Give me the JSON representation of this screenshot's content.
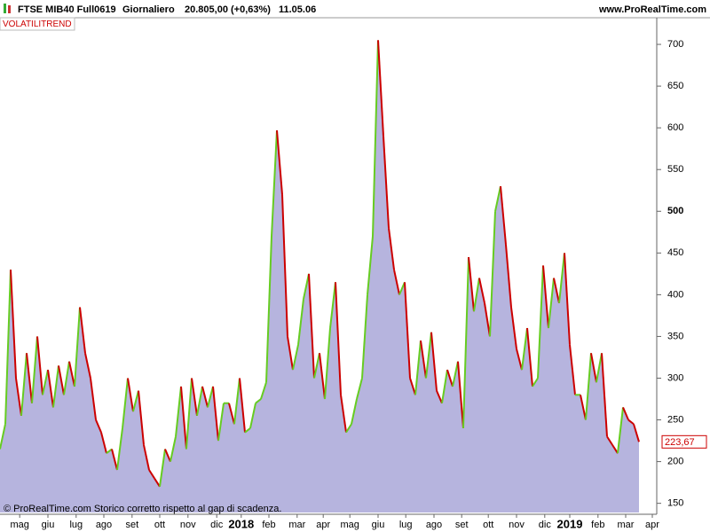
{
  "header": {
    "instrument": "FTSE MIB40 Full0619",
    "period": "Giornaliero",
    "quote": "20.805,00 (+0,63%)",
    "time": "11.05.06",
    "site": "www.ProRealTime.com"
  },
  "indicator_label": "VOLATILITREND",
  "footer": "© ProRealTime.com  Storico corretto rispetto al gap di scadenza.",
  "chart_data": {
    "type": "area",
    "values": [
      215,
      245,
      430,
      300,
      255,
      330,
      270,
      350,
      280,
      310,
      265,
      315,
      280,
      320,
      290,
      385,
      330,
      300,
      250,
      235,
      210,
      215,
      190,
      240,
      300,
      260,
      285,
      220,
      190,
      180,
      170,
      215,
      200,
      230,
      290,
      215,
      300,
      255,
      290,
      265,
      290,
      225,
      270,
      270,
      245,
      300,
      235,
      240,
      270,
      275,
      295,
      470,
      597,
      520,
      350,
      310,
      340,
      395,
      425,
      300,
      330,
      275,
      360,
      415,
      280,
      235,
      245,
      275,
      300,
      400,
      470,
      705,
      590,
      480,
      430,
      400,
      415,
      300,
      280,
      345,
      300,
      355,
      285,
      270,
      310,
      290,
      320,
      240,
      445,
      380,
      420,
      390,
      350,
      500,
      530,
      460,
      385,
      335,
      310,
      360,
      290,
      300,
      435,
      360,
      420,
      390,
      450,
      340,
      280,
      280,
      250,
      330,
      295,
      330,
      230,
      220,
      210,
      265,
      250,
      245,
      223.67
    ],
    "last_value_label": "223,67",
    "up_color": "#66cc22",
    "down_color": "#cc0000",
    "fill_color": "#b6b4de",
    "xlim": [
      0,
      123
    ],
    "xticks": [
      {
        "value": 3.7,
        "label": "mag"
      },
      {
        "value": 9,
        "label": "giu"
      },
      {
        "value": 14.3,
        "label": "lug"
      },
      {
        "value": 19.5,
        "label": "ago"
      },
      {
        "value": 24.8,
        "label": "set"
      },
      {
        "value": 30,
        "label": "ott"
      },
      {
        "value": 35.3,
        "label": "nov"
      },
      {
        "value": 40.7,
        "label": "dic"
      },
      {
        "value": 45.3,
        "label": "2018"
      },
      {
        "value": 50.5,
        "label": "feb"
      },
      {
        "value": 55.8,
        "label": "mar"
      },
      {
        "value": 60.7,
        "label": "apr"
      },
      {
        "value": 65.7,
        "label": "mag"
      },
      {
        "value": 71,
        "label": "giu"
      },
      {
        "value": 76.2,
        "label": "lug"
      },
      {
        "value": 81.5,
        "label": "ago"
      },
      {
        "value": 86.7,
        "label": "set"
      },
      {
        "value": 91.7,
        "label": "ott"
      },
      {
        "value": 97,
        "label": "nov"
      },
      {
        "value": 102.3,
        "label": "dic"
      },
      {
        "value": 107,
        "label": "2019"
      },
      {
        "value": 112.3,
        "label": "feb"
      },
      {
        "value": 117.5,
        "label": "mar"
      },
      {
        "value": 122.5,
        "label": "apr"
      }
    ],
    "ylim": [
      139,
      716
    ],
    "yticks": [
      150,
      200,
      250,
      300,
      350,
      400,
      450,
      500,
      550,
      600,
      650,
      700
    ]
  }
}
